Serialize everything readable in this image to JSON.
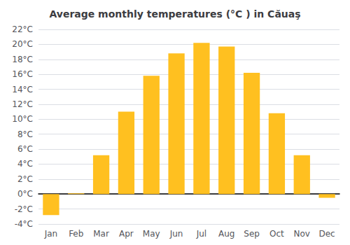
{
  "chart_data": {
    "type": "bar",
    "title": "Average monthly temperatures (°C ) in Căuaş",
    "categories": [
      "Jan",
      "Feb",
      "Mar",
      "Apr",
      "May",
      "Jun",
      "Jul",
      "Aug",
      "Sep",
      "Oct",
      "Nov",
      "Dec"
    ],
    "values": [
      -2.8,
      0.1,
      5.2,
      11.0,
      15.8,
      18.8,
      20.2,
      19.7,
      16.2,
      10.8,
      5.2,
      -0.5
    ],
    "color": "#FFC020",
    "ylim": [
      -4,
      22
    ],
    "yticks": [
      {
        "value": -4,
        "label": "-4°C"
      },
      {
        "value": -2,
        "label": "-2°C"
      },
      {
        "value": 0,
        "label": "0°C"
      },
      {
        "value": 2,
        "label": "2°C"
      },
      {
        "value": 4,
        "label": "4°C"
      },
      {
        "value": 6,
        "label": "6°C"
      },
      {
        "value": 8,
        "label": "8°C"
      },
      {
        "value": 10,
        "label": "10°C"
      },
      {
        "value": 12,
        "label": "12°C"
      },
      {
        "value": 14,
        "label": "14°C"
      },
      {
        "value": 16,
        "label": "16°C"
      },
      {
        "value": 18,
        "label": "18°C"
      },
      {
        "value": 20,
        "label": "20°C"
      },
      {
        "value": 22,
        "label": "22°C"
      }
    ],
    "grid": true
  }
}
